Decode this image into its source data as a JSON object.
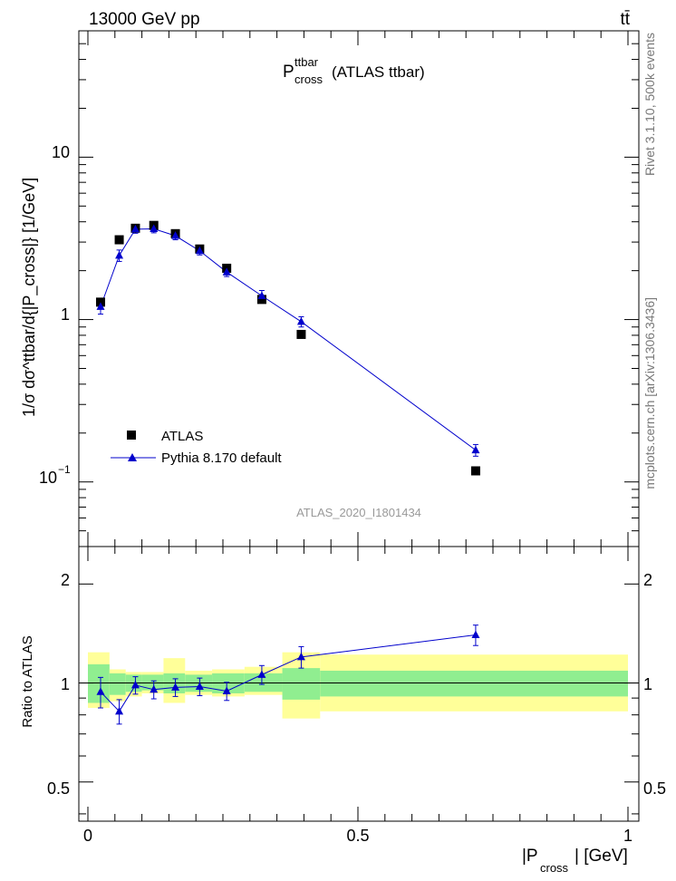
{
  "header": {
    "left": "13000 GeV pp",
    "right": "tt̄"
  },
  "title": {
    "main": "P",
    "sup": "ttbar",
    "sub": "cross",
    "rest": "(ATLAS ttbar)"
  },
  "side_labels": {
    "rivet": "Rivet 3.1.10,  500k events",
    "mcplots": "mcplots.cern.ch [arXiv:1306.3436]"
  },
  "watermark": "ATLAS_2020_I1801434",
  "legend": {
    "data_label": "ATLAS",
    "mc_label": "Pythia 8.170 default",
    "position": "bottom-left"
  },
  "axes": {
    "ylabel_main": "1/σ dσ^ttbar/d{|P_cross|} [1/GeV]",
    "ylabel_ratio": "Ratio to ATLAS",
    "xlabel_main": "|P",
    "xlabel_sub": "cross",
    "xlabel_rest": "| [GeV]",
    "main_ytick_labels": [
      "10",
      "1",
      "10"
    ],
    "main_ytick_exp": "−1",
    "ratio_ytick_labels": [
      "2",
      "1",
      "0.5"
    ],
    "xtick_labels": [
      "0",
      "0.5",
      "1"
    ]
  },
  "colors": {
    "data": "#000000",
    "mc": "#0000cc",
    "band_inner": "#90ee90",
    "band_outer": "#ffff99"
  },
  "chart_data": [
    {
      "type": "scatter",
      "panel": "main",
      "yscale": "log",
      "xlim": [
        0,
        1
      ],
      "ylim": [
        0.04,
        60
      ],
      "grid": false,
      "series": [
        {
          "name": "ATLAS",
          "x": [
            0.0235,
            0.058,
            0.088,
            0.122,
            0.162,
            0.207,
            0.257,
            0.322,
            0.395,
            0.718
          ],
          "y": [
            1.28,
            3.1,
            3.65,
            3.8,
            3.38,
            2.72,
            2.07,
            1.33,
            0.81,
            0.117
          ]
        },
        {
          "name": "Pythia 8.170 default",
          "x": [
            0.0235,
            0.058,
            0.088,
            0.122,
            0.162,
            0.207,
            0.257,
            0.322,
            0.395,
            0.718
          ],
          "y": [
            1.2,
            2.48,
            3.6,
            3.62,
            3.28,
            2.65,
            1.96,
            1.4,
            0.97,
            0.157
          ],
          "yerr": [
            0.12,
            0.2,
            0.2,
            0.2,
            0.18,
            0.15,
            0.12,
            0.11,
            0.07,
            0.013
          ]
        }
      ]
    },
    {
      "type": "line",
      "panel": "ratio",
      "yscale": "log",
      "xlim": [
        0,
        1
      ],
      "ylim": [
        0.38,
        2.6
      ],
      "bins": [
        {
          "lo": 0.0,
          "hi": 0.04,
          "inner": [
            0.87,
            1.14
          ],
          "outer": [
            0.84,
            1.24
          ]
        },
        {
          "lo": 0.04,
          "hi": 0.07,
          "inner": [
            0.92,
            1.07
          ],
          "outer": [
            0.88,
            1.1
          ]
        },
        {
          "lo": 0.07,
          "hi": 0.1,
          "inner": [
            0.94,
            1.06
          ],
          "outer": [
            0.91,
            1.08
          ]
        },
        {
          "lo": 0.1,
          "hi": 0.14,
          "inner": [
            0.95,
            1.06
          ],
          "outer": [
            0.93,
            1.08
          ]
        },
        {
          "lo": 0.14,
          "hi": 0.18,
          "inner": [
            0.93,
            1.07
          ],
          "outer": [
            0.87,
            1.19
          ]
        },
        {
          "lo": 0.18,
          "hi": 0.23,
          "inner": [
            0.94,
            1.06
          ],
          "outer": [
            0.92,
            1.09
          ]
        },
        {
          "lo": 0.23,
          "hi": 0.29,
          "inner": [
            0.93,
            1.07
          ],
          "outer": [
            0.91,
            1.1
          ]
        },
        {
          "lo": 0.29,
          "hi": 0.36,
          "inner": [
            0.94,
            1.07
          ],
          "outer": [
            0.92,
            1.12
          ]
        },
        {
          "lo": 0.36,
          "hi": 0.43,
          "inner": [
            0.89,
            1.11
          ],
          "outer": [
            0.78,
            1.24
          ]
        },
        {
          "lo": 0.43,
          "hi": 1.0,
          "inner": [
            0.91,
            1.09
          ],
          "outer": [
            0.82,
            1.22
          ]
        }
      ],
      "series": [
        {
          "name": "Pythia 8.170 default",
          "x": [
            0.0235,
            0.058,
            0.088,
            0.122,
            0.162,
            0.207,
            0.257,
            0.322,
            0.395,
            0.718
          ],
          "y": [
            0.94,
            0.82,
            0.985,
            0.955,
            0.97,
            0.975,
            0.945,
            1.06,
            1.2,
            1.4
          ],
          "yerr": [
            0.1,
            0.07,
            0.06,
            0.06,
            0.06,
            0.06,
            0.06,
            0.07,
            0.09,
            0.1
          ]
        }
      ]
    }
  ]
}
